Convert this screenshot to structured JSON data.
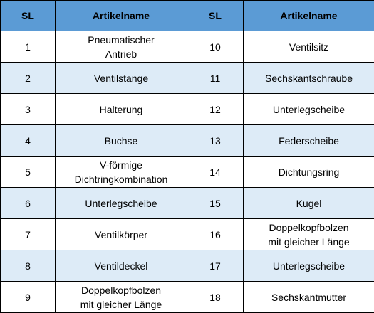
{
  "table": {
    "headers": [
      "SL",
      "Artikelname",
      "SL",
      "Artikelname"
    ],
    "rows": [
      {
        "sl1": "1",
        "name1": "Pneumatischer\nAntrieb",
        "sl2": "10",
        "name2": "Ventilsitz"
      },
      {
        "sl1": "2",
        "name1": "Ventilstange",
        "sl2": "11",
        "name2": "Sechskantschraube"
      },
      {
        "sl1": "3",
        "name1": "Halterung",
        "sl2": "12",
        "name2": "Unterlegscheibe"
      },
      {
        "sl1": "4",
        "name1": "Buchse",
        "sl2": "13",
        "name2": "Federscheibe"
      },
      {
        "sl1": "5",
        "name1": "V-förmige\nDichtringkombination",
        "sl2": "14",
        "name2": "Dichtungsring"
      },
      {
        "sl1": "6",
        "name1": "Unterlegscheibe",
        "sl2": "15",
        "name2": "Kugel"
      },
      {
        "sl1": "7",
        "name1": "Ventilkörper",
        "sl2": "16",
        "name2": "Doppelkopfbolzen\nmit gleicher Länge"
      },
      {
        "sl1": "8",
        "name1": "Ventildeckel",
        "sl2": "17",
        "name2": "Unterlegscheibe"
      },
      {
        "sl1": "9",
        "name1": "Doppelkopfbolzen\nmit gleicher Länge",
        "sl2": "18",
        "name2": "Sechskantmutter"
      }
    ]
  },
  "colors": {
    "header_fill": "#5b9bd5",
    "alt_row_fill": "#ddebf7",
    "border": "#000000"
  }
}
